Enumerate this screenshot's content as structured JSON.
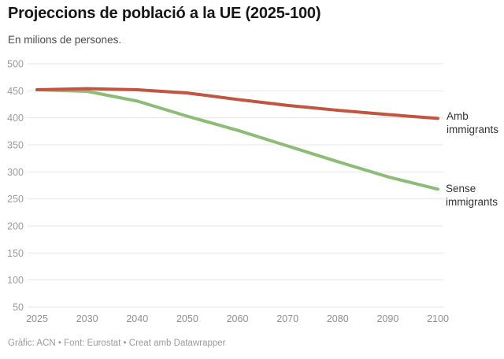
{
  "header": {
    "title": "Projeccions de població a la UE (2025-100)",
    "subtitle": "En milions de persones."
  },
  "footer": {
    "credit": "Gràfic: ACN • Font: Eurostat • Creat amb Datawrapper"
  },
  "chart_data": {
    "type": "line",
    "title": "Projeccions de població a la UE (2025-100)",
    "subtitle": "En milions de persones.",
    "xlabel": "",
    "ylabel": "En milions de persones",
    "categories": [
      "2025",
      "2030",
      "2040",
      "2050",
      "2060",
      "2070",
      "2080",
      "2090",
      "2100"
    ],
    "series": [
      {
        "name": "Amb immigrants",
        "color": "#c25440",
        "values": [
          452,
          454,
          452,
          446,
          434,
          423,
          414,
          406,
          399
        ]
      },
      {
        "name": "Sense immigrants",
        "color": "#8dbc77",
        "values": [
          452,
          449,
          431,
          403,
          377,
          348,
          319,
          291,
          268
        ]
      }
    ],
    "ylim": [
      50,
      500
    ],
    "yticks": [
      500,
      450,
      400,
      350,
      300,
      250,
      200,
      150,
      100,
      50
    ],
    "grid": "horizontal",
    "grid_color": "#e4e4e4",
    "axis_text_color": "#9b9b9b",
    "legend_position": "labels-at-line-ends"
  }
}
